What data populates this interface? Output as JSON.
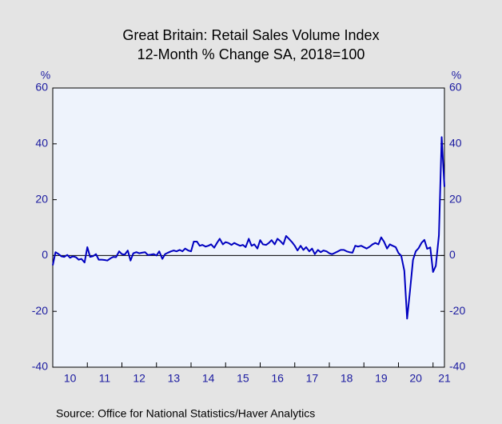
{
  "chart_data": {
    "type": "line",
    "title": "Great Britain: Retail Sales Volume Index",
    "subtitle": "12-Month % Change   SA, 2018=100",
    "ylabel": "%",
    "y2label": "%",
    "source": "Source:  Office for National Statistics/Haver Analytics",
    "color": "#0000c0",
    "zero_line": true,
    "x": [
      2010,
      2010.08,
      2010.17,
      2010.25,
      2010.33,
      2010.42,
      2010.5,
      2010.58,
      2010.67,
      2010.75,
      2010.83,
      2010.92,
      2011,
      2011.08,
      2011.17,
      2011.25,
      2011.33,
      2011.42,
      2011.5,
      2011.58,
      2011.67,
      2011.75,
      2011.83,
      2011.92,
      2012,
      2012.08,
      2012.17,
      2012.25,
      2012.33,
      2012.42,
      2012.5,
      2012.58,
      2012.67,
      2012.75,
      2012.83,
      2012.92,
      2013,
      2013.08,
      2013.17,
      2013.25,
      2013.33,
      2013.42,
      2013.5,
      2013.58,
      2013.67,
      2013.75,
      2013.83,
      2013.92,
      2014,
      2014.08,
      2014.17,
      2014.25,
      2014.33,
      2014.42,
      2014.5,
      2014.58,
      2014.67,
      2014.75,
      2014.83,
      2014.92,
      2015,
      2015.08,
      2015.17,
      2015.25,
      2015.33,
      2015.42,
      2015.5,
      2015.58,
      2015.67,
      2015.75,
      2015.83,
      2015.92,
      2016,
      2016.08,
      2016.17,
      2016.25,
      2016.33,
      2016.42,
      2016.5,
      2016.58,
      2016.67,
      2016.75,
      2016.83,
      2016.92,
      2017,
      2017.08,
      2017.17,
      2017.25,
      2017.33,
      2017.42,
      2017.5,
      2017.58,
      2017.67,
      2017.75,
      2017.83,
      2017.92,
      2018,
      2018.08,
      2018.17,
      2018.25,
      2018.33,
      2018.42,
      2018.5,
      2018.58,
      2018.67,
      2018.75,
      2018.83,
      2018.92,
      2019,
      2019.08,
      2019.17,
      2019.25,
      2019.33,
      2019.42,
      2019.5,
      2019.58,
      2019.67,
      2019.75,
      2019.83,
      2019.92,
      2020,
      2020.08,
      2020.17,
      2020.25,
      2020.33,
      2020.42,
      2020.5,
      2020.58,
      2020.67,
      2020.75,
      2020.83,
      2020.92,
      2021,
      2021.08,
      2021.17,
      2021.25,
      2021.33
    ],
    "values": [
      -3.5,
      1.2,
      0.5,
      -0.3,
      -0.5,
      0.2,
      -0.8,
      -0.3,
      -0.6,
      -1.5,
      -1.2,
      -2.5,
      3.0,
      -0.5,
      -0.2,
      0.5,
      -1.5,
      -1.5,
      -1.6,
      -1.8,
      -1.0,
      -0.5,
      -0.6,
      1.5,
      0.5,
      0.3,
      1.8,
      -1.8,
      0.8,
      1.2,
      0.8,
      1.0,
      1.2,
      0.2,
      0.3,
      0.5,
      0.0,
      1.5,
      -1.2,
      0.5,
      1.0,
      1.5,
      1.8,
      1.5,
      2.0,
      1.5,
      2.5,
      1.8,
      1.5,
      5.0,
      5.0,
      3.5,
      3.8,
      3.2,
      3.5,
      4.0,
      2.8,
      4.5,
      6.0,
      4.0,
      4.8,
      4.5,
      3.8,
      4.5,
      4.0,
      3.5,
      3.8,
      3.0,
      6.0,
      3.5,
      4.0,
      2.5,
      5.5,
      4.0,
      3.8,
      4.5,
      5.5,
      4.0,
      6.0,
      5.2,
      4.0,
      7.0,
      6.0,
      4.8,
      3.5,
      1.8,
      3.5,
      2.0,
      3.0,
      1.5,
      2.5,
      0.5,
      2.0,
      1.2,
      1.8,
      1.5,
      0.8,
      0.5,
      1.0,
      1.5,
      2.0,
      2.0,
      1.5,
      1.2,
      1.0,
      3.5,
      3.2,
      3.5,
      3.0,
      2.5,
      3.2,
      4.0,
      4.5,
      4.0,
      6.5,
      5.0,
      2.5,
      4.0,
      3.5,
      3.0,
      0.9,
      -0.1,
      -5.5,
      -22.6,
      -13.1,
      -1.6,
      1.5,
      2.6,
      4.6,
      5.6,
      2.4,
      2.9,
      -5.9,
      -3.7,
      7.2,
      42.4,
      24.6
    ],
    "xlim": [
      2010,
      2021.33
    ],
    "xticks": [
      {
        "value": 2010,
        "label": "10"
      },
      {
        "value": 2011,
        "label": "11"
      },
      {
        "value": 2012,
        "label": "12"
      },
      {
        "value": 2013,
        "label": "13"
      },
      {
        "value": 2014,
        "label": "14"
      },
      {
        "value": 2015,
        "label": "15"
      },
      {
        "value": 2016,
        "label": "16"
      },
      {
        "value": 2017,
        "label": "17"
      },
      {
        "value": 2018,
        "label": "18"
      },
      {
        "value": 2019,
        "label": "19"
      },
      {
        "value": 2020,
        "label": "20"
      },
      {
        "value": 2021,
        "label": "21"
      }
    ],
    "ylim": [
      -40,
      60
    ],
    "yticks": [
      -40,
      -20,
      0,
      20,
      40,
      60
    ],
    "y2lim": [
      -40,
      60
    ],
    "y2ticks": [
      -40,
      -20,
      0,
      20,
      40,
      60
    ]
  }
}
